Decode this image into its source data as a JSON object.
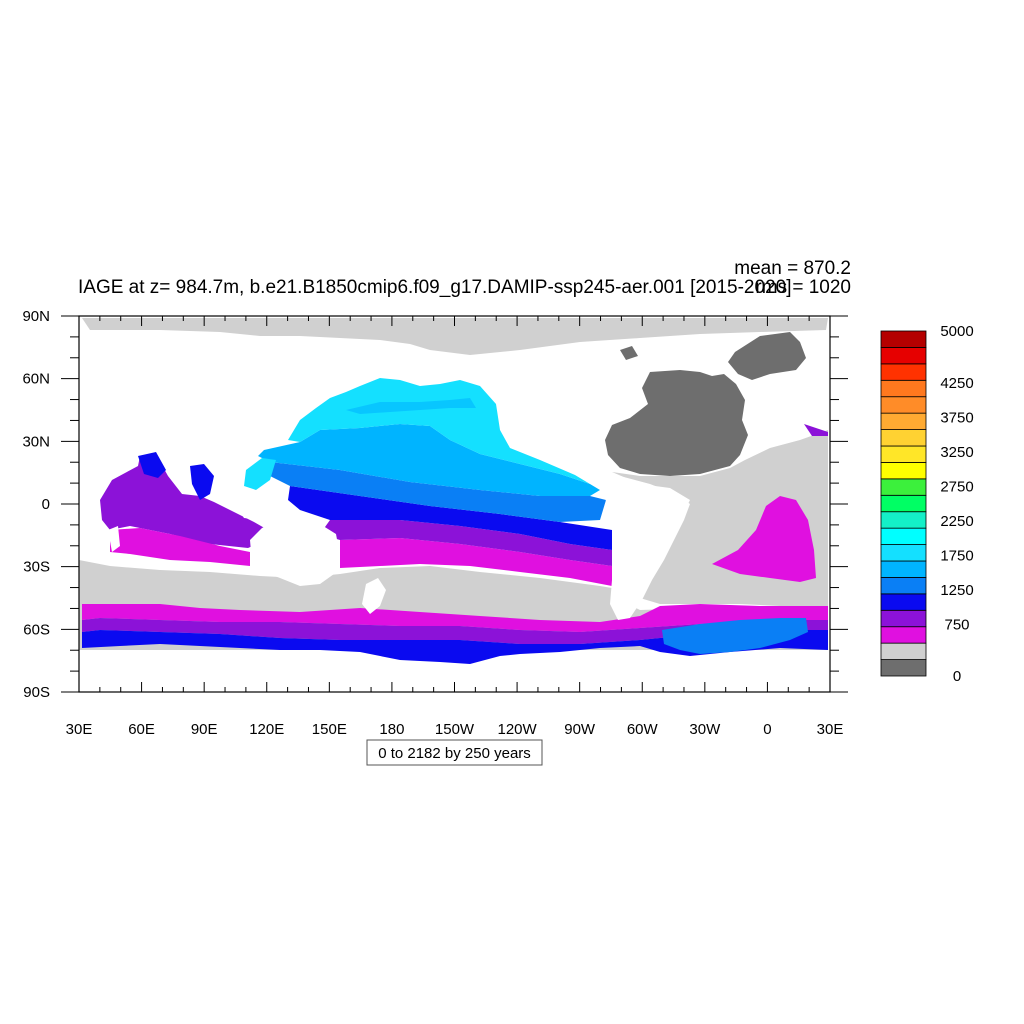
{
  "title": "IAGE at z= 984.7m, b.e21.B1850cmip6.f09_g17.DAMIP-ssp245-aer.001 [2015-2020]",
  "stats": {
    "mean": "mean = 870.2",
    "rms": "rms = 1020"
  },
  "subtitle_box": "0 to 2182 by 250 years",
  "colors": {
    "land": "#ffffff",
    "missing_gray": "#d0d0d0",
    "dark_gray": "#6e6e6e",
    "magenta": "#e010e0",
    "purple": "#8c12d8",
    "blue": "#0a0af0",
    "azure": "#0a7ff5",
    "sky": "#00b4ff",
    "cyan": "#14e0ff"
  },
  "chart_data": {
    "type": "heatmap",
    "projection": "cylindrical-equidistant",
    "lon_range": [
      30,
      390
    ],
    "lat_range": [
      -90,
      90
    ],
    "x_ticks": [
      "30E",
      "60E",
      "90E",
      "120E",
      "150E",
      "180",
      "150W",
      "120W",
      "90W",
      "60W",
      "30W",
      "0",
      "30E"
    ],
    "y_ticks": [
      "90N",
      "60N",
      "30N",
      "0",
      "30S",
      "60S",
      "90S"
    ],
    "colorbar": {
      "levels": [
        0,
        250,
        500,
        750,
        1000,
        1250,
        1500,
        1750,
        2000,
        2250,
        2500,
        2750,
        3000,
        3250,
        3500,
        3750,
        4000,
        4250,
        4500,
        4750,
        5000
      ],
      "colors": [
        "#6e6e6e",
        "#d0d0d0",
        "#e010e0",
        "#8c12d8",
        "#0a0af0",
        "#0a7ff5",
        "#00b4ff",
        "#14e0ff",
        "#00ffff",
        "#14f0c8",
        "#00ff64",
        "#3cf03c",
        "#ffff00",
        "#ffe628",
        "#ffd232",
        "#ffaa32",
        "#ff8c28",
        "#ff781e",
        "#ff3200",
        "#e60000",
        "#b40000"
      ],
      "labels": [
        "0",
        "750",
        "1250",
        "1750",
        "2250",
        "2750",
        "3250",
        "3750",
        "4250",
        "5000"
      ]
    }
  }
}
